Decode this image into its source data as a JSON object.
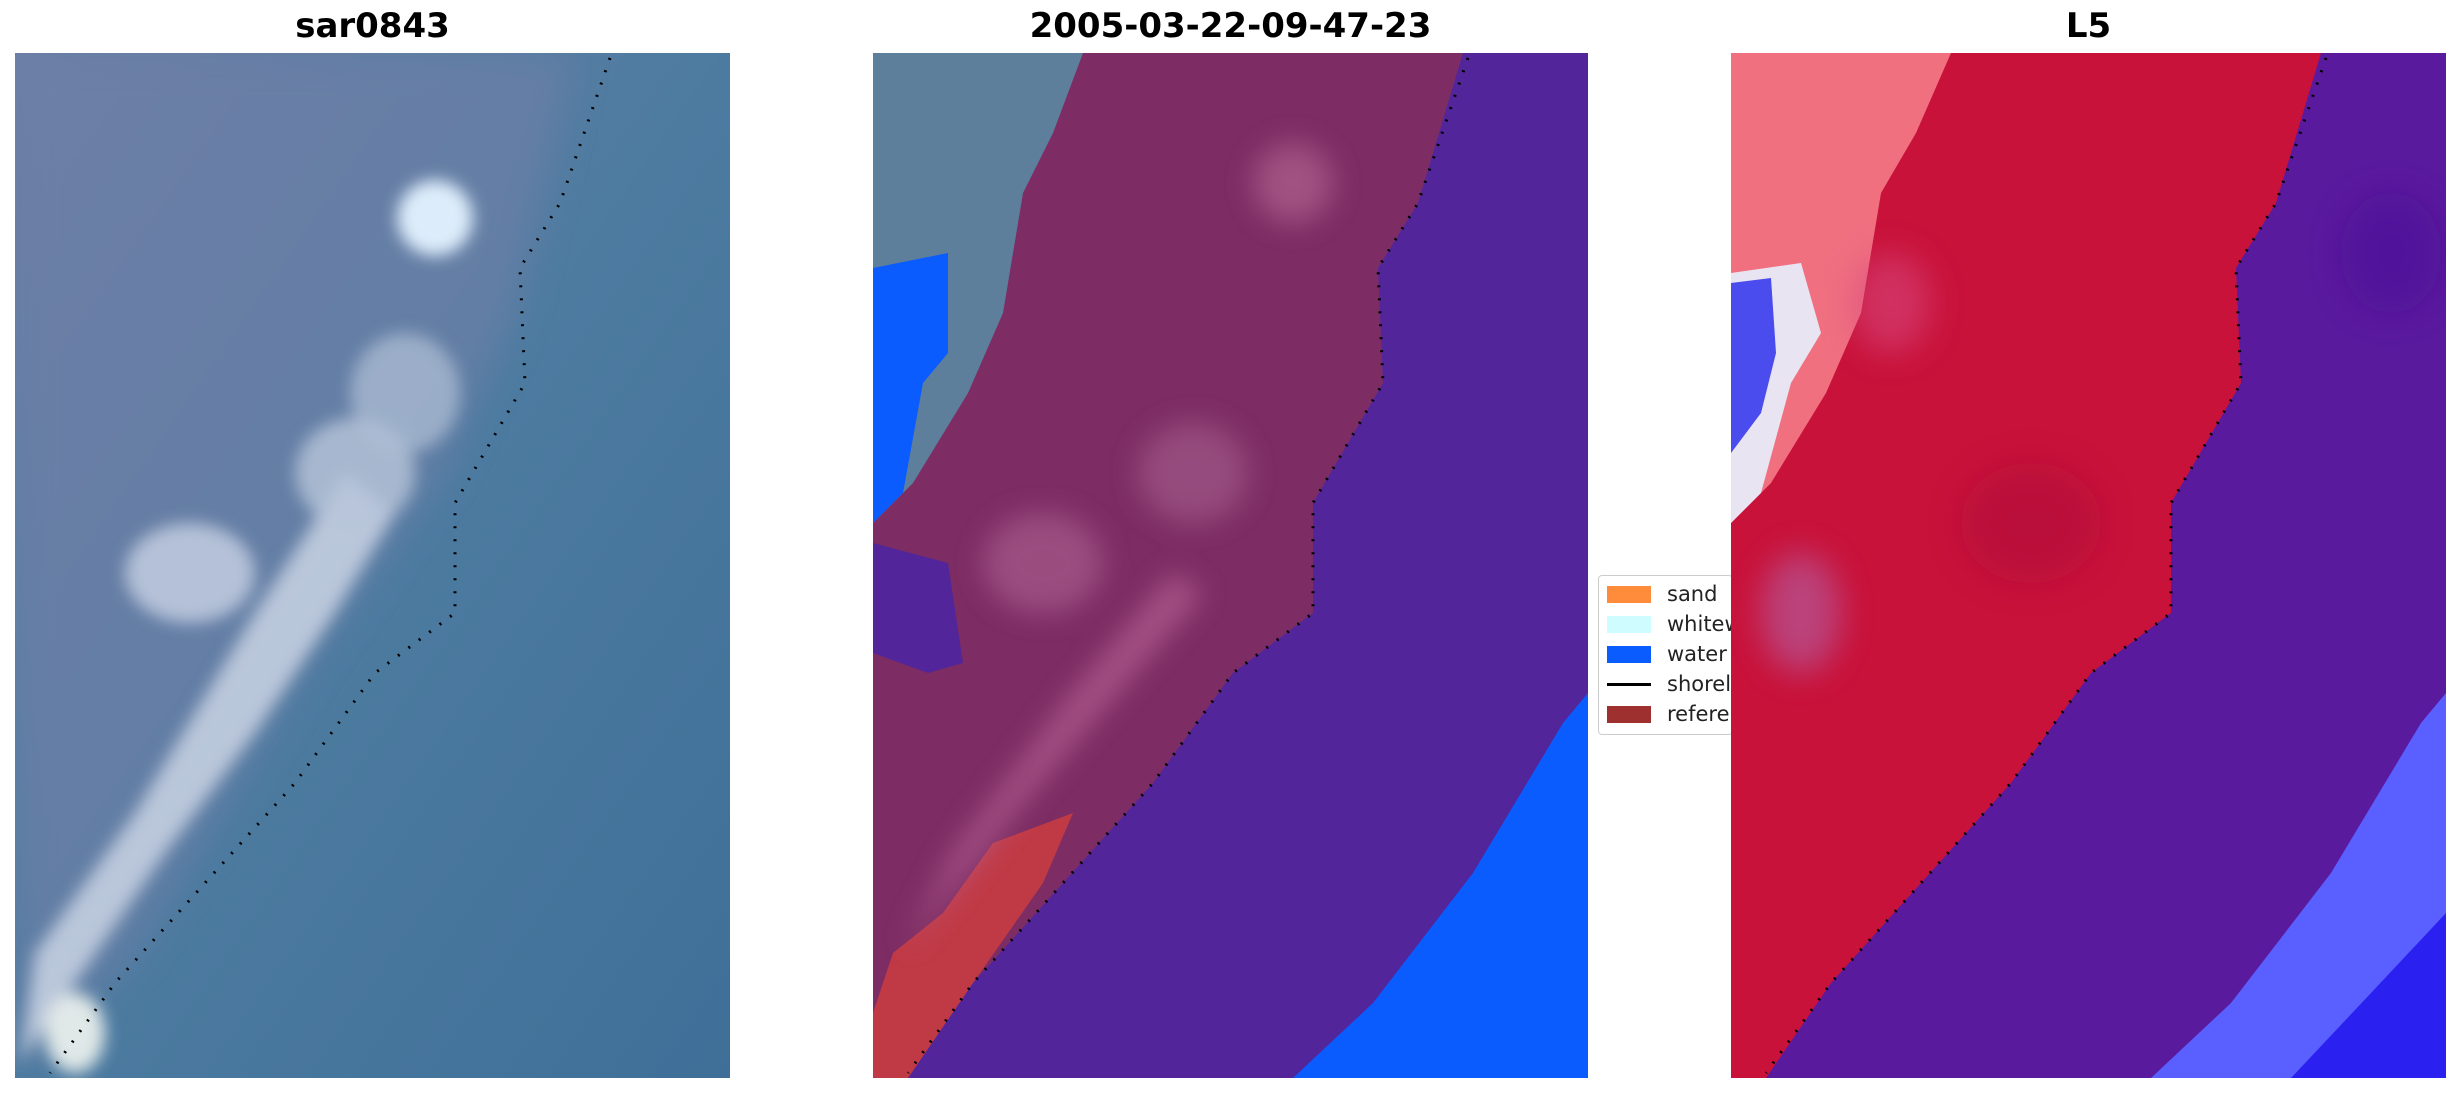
{
  "panels": [
    {
      "title": "sar0843",
      "view": "rgb-image"
    },
    {
      "title": "2005-03-22-09-47-23",
      "view": "classified-image"
    },
    {
      "title": "L5",
      "view": "probability-map"
    }
  ],
  "legend": {
    "items": [
      {
        "label": "sand",
        "color": "#ff8c3a",
        "kind": "patch"
      },
      {
        "label": "whitewater",
        "color": "#cffcff",
        "kind": "patch"
      },
      {
        "label": "water",
        "color": "#0a5cff",
        "kind": "patch"
      },
      {
        "label": "shoreline",
        "color": "#000000",
        "kind": "line"
      },
      {
        "label": "reference",
        "color": "#9e3030",
        "kind": "patch"
      }
    ]
  },
  "colors": {
    "rgb_water": "#4a7a9e",
    "rgb_land": "#6f85a8",
    "class_land": "#7d2d63",
    "class_water_dark": "#53259a",
    "class_water_blue": "#0a5cff",
    "class_reference": "#c03a45",
    "class_other": "#5e7f9c",
    "prob_red": "#c8123a",
    "prob_purple": "#5a1a9e",
    "prob_blue": "#4c5cff"
  }
}
